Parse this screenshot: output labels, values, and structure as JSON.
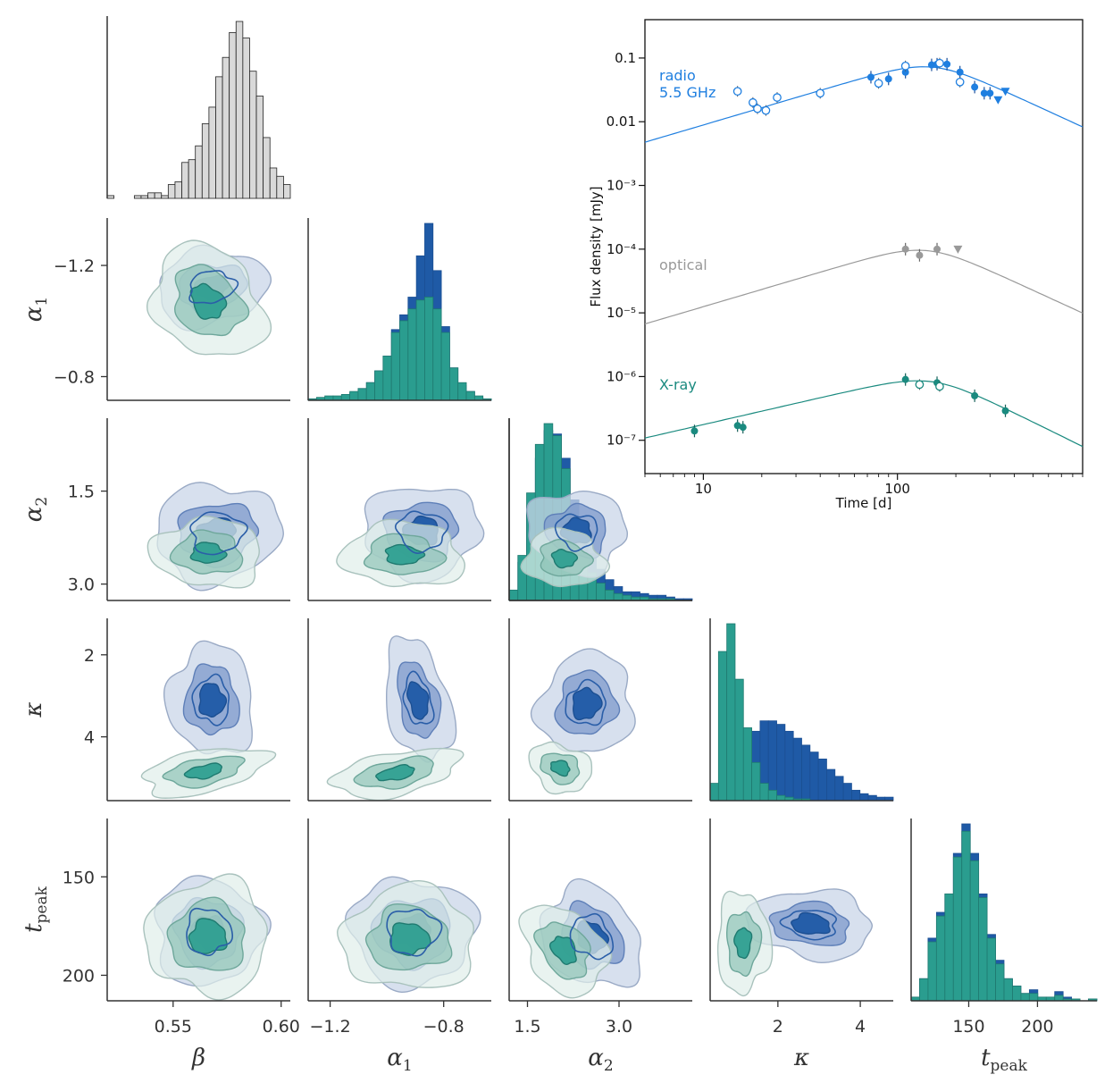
{
  "colors": {
    "radio": "#1f7fe0",
    "optical": "#999999",
    "xray": "#1a8a7f",
    "blue_fill": "#1f5aa6",
    "green_fill": "#2a9d8f",
    "hist_gray": "#d9d9d9"
  },
  "chart_data": [
    {
      "type": "corner",
      "parameters": [
        {
          "key": "beta",
          "label": "β",
          "sub": "",
          "ticks": [
            "0.55",
            "0.60"
          ],
          "range": [
            0.52,
            0.605
          ]
        },
        {
          "key": "alpha1",
          "label": "α",
          "sub": "1",
          "ticks": [
            "−1.2",
            "−0.8"
          ],
          "tick_values": [
            -1.2,
            -0.8
          ],
          "range": [
            -1.3,
            -0.65
          ]
        },
        {
          "key": "alpha2",
          "label": "α",
          "sub": "2",
          "ticks": [
            "1.5",
            "3.0"
          ],
          "tick_values": [
            1.5,
            3.0
          ],
          "range": [
            1.3,
            3.9
          ]
        },
        {
          "key": "kappa",
          "label": "κ",
          "sub": "",
          "ticks": [
            "2",
            "4"
          ],
          "tick_values": [
            2,
            4
          ],
          "range": [
            0.4,
            4.8
          ]
        },
        {
          "key": "tpeak",
          "label": "t",
          "sub": "peak",
          "ticks": [
            "150",
            "200"
          ],
          "tick_values": [
            150,
            200
          ],
          "range": [
            135,
            230
          ]
        }
      ],
      "histograms": {
        "beta": {
          "gray": [
            1,
            0,
            0,
            0,
            1,
            1,
            2,
            2,
            1,
            5,
            6,
            13,
            14,
            19,
            27,
            33,
            44,
            51,
            60,
            64,
            58,
            46,
            37,
            22,
            11,
            8,
            5
          ]
        },
        "alpha1": {
          "blue": [
            1,
            1,
            2,
            2,
            3,
            5,
            8,
            12,
            20,
            30,
            48,
            58,
            70,
            98,
            120,
            88,
            50,
            22,
            10,
            6,
            2,
            1
          ],
          "green": [
            1,
            2,
            3,
            3,
            4,
            6,
            8,
            12,
            20,
            30,
            46,
            54,
            62,
            68,
            70,
            62,
            46,
            22,
            12,
            6,
            3,
            1
          ]
        },
        "alpha2": {
          "blue": [
            4,
            22,
            54,
            82,
            98,
            96,
            82,
            58,
            40,
            27,
            18,
            12,
            8,
            5,
            5,
            4,
            3,
            3,
            2,
            1,
            1
          ],
          "green": [
            6,
            26,
            62,
            90,
            102,
            95,
            76,
            46,
            28,
            16,
            10,
            6,
            4,
            3,
            2,
            2,
            1,
            1,
            1,
            0,
            0
          ]
        },
        "kappa": {
          "blue": [
            3,
            6,
            10,
            20,
            30,
            40,
            46,
            46,
            44,
            40,
            36,
            32,
            28,
            24,
            18,
            14,
            10,
            6,
            4,
            3,
            2,
            2
          ],
          "green": [
            10,
            86,
            102,
            70,
            42,
            22,
            10,
            6,
            3,
            2,
            1,
            1,
            0,
            0,
            0,
            0,
            0,
            0,
            0,
            0,
            0,
            0
          ]
        },
        "tpeak": {
          "blue": [
            2,
            12,
            34,
            48,
            58,
            80,
            96,
            80,
            58,
            36,
            22,
            12,
            8,
            4,
            6,
            2,
            2,
            5,
            2,
            0,
            0,
            1
          ],
          "green": [
            2,
            12,
            32,
            46,
            58,
            78,
            92,
            76,
            56,
            34,
            20,
            12,
            8,
            4,
            4,
            2,
            2,
            3,
            1,
            1,
            0,
            1
          ]
        }
      }
    },
    {
      "type": "scatter",
      "xscale": "log",
      "yscale": "log",
      "xlabel": "Time [d]",
      "ylabel": "Flux density [mJy]",
      "xlim": [
        5,
        900
      ],
      "ylim": [
        3e-08,
        0.4
      ],
      "xticks": [
        "10",
        "100"
      ],
      "yticks": [
        "0.1",
        "0.01",
        "10⁻³",
        "10⁻⁴",
        "10⁻⁵",
        "10⁻⁶",
        "10⁻⁷"
      ],
      "series": [
        {
          "name": "radio\n5.5 GHz",
          "filled_points": [
            [
              73,
              0.05
            ],
            [
              90,
              0.047
            ],
            [
              110,
              0.06
            ],
            [
              150,
              0.078
            ],
            [
              160,
              0.08
            ],
            [
              180,
              0.08
            ],
            [
              210,
              0.06
            ],
            [
              250,
              0.035
            ],
            [
              280,
              0.028
            ],
            [
              300,
              0.028
            ]
          ],
          "open_points": [
            [
              15,
              0.03
            ],
            [
              18,
              0.02
            ],
            [
              19,
              0.016
            ],
            [
              21,
              0.015
            ],
            [
              24,
              0.024
            ],
            [
              40,
              0.028
            ],
            [
              80,
              0.04
            ],
            [
              110,
              0.075
            ],
            [
              165,
              0.083
            ],
            [
              210,
              0.042
            ]
          ],
          "upper_limits": [
            [
              330,
              0.022
            ],
            [
              360,
              0.03
            ]
          ],
          "model": {
            "t_peak": 150,
            "peak": 0.072,
            "rise_slope": 0.9,
            "decay_slope": -1.4
          }
        },
        {
          "name": "optical",
          "filled_points": [
            [
              110,
              0.0001
            ],
            [
              130,
              8e-05
            ],
            [
              160,
              0.0001
            ]
          ],
          "upper_limits": [
            [
              205,
              0.0001
            ]
          ],
          "model": {
            "t_peak": 140,
            "peak": 9.5e-05,
            "rise_slope": 0.9,
            "decay_slope": -1.4
          }
        },
        {
          "name": "X-ray",
          "filled_points": [
            [
              9,
              1.4e-07
            ],
            [
              15,
              1.7e-07
            ],
            [
              16,
              1.6e-07
            ],
            [
              110,
              9e-07
            ],
            [
              160,
              8e-07
            ],
            [
              250,
              5e-07
            ],
            [
              360,
              2.9e-07
            ]
          ],
          "open_points": [
            [
              130,
              7.5e-07
            ],
            [
              165,
              7e-07
            ]
          ],
          "model": {
            "t_peak": 150,
            "peak": 8.3e-07,
            "rise_slope": 0.7,
            "decay_slope": -1.5
          }
        }
      ]
    }
  ]
}
